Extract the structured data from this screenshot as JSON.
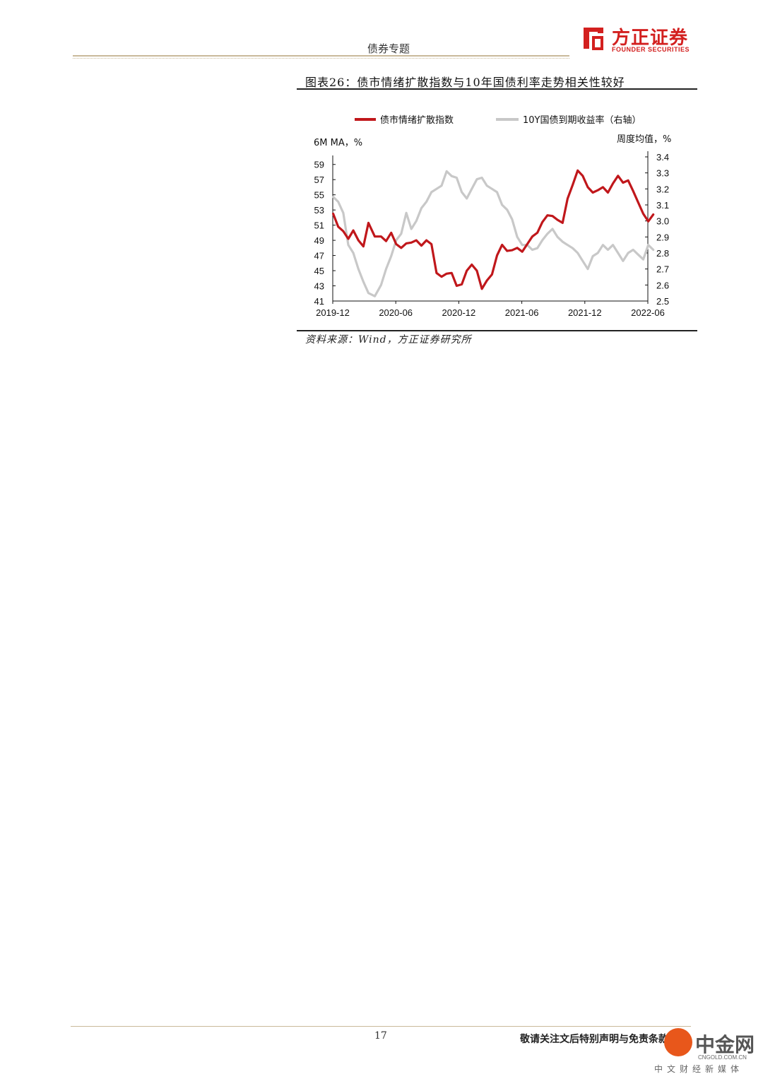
{
  "header": {
    "title": "债券专题"
  },
  "logo": {
    "cn": "方正证券",
    "en": "FOUNDER SECURITIES"
  },
  "figure": {
    "title": "图表26：债市情绪扩散指数与10年国债利率走势相关性较好",
    "source": "资料来源：Wind，方正证券研究所"
  },
  "chart_data": {
    "type": "line",
    "left_axis_label": "6M MA，%",
    "right_axis_label": "周度均值，%",
    "x_ticks": [
      "2019-12",
      "2020-06",
      "2020-12",
      "2021-06",
      "2021-12",
      "2022-06"
    ],
    "left_ticks": [
      "41",
      "43",
      "45",
      "47",
      "49",
      "51",
      "53",
      "55",
      "57",
      "59"
    ],
    "right_ticks": [
      "2.5",
      "2.6",
      "2.7",
      "2.8",
      "2.9",
      "3.0",
      "3.1",
      "3.2",
      "3.3",
      "3.4"
    ],
    "ylim_left": [
      41,
      60
    ],
    "ylim_right": [
      2.5,
      3.4
    ],
    "xlim": [
      "2019-12",
      "2022-06"
    ],
    "grid": false,
    "legend": "top",
    "series": [
      {
        "name": "债市情绪扩散指数",
        "axis": "left",
        "color": "#c0171b",
        "x": [
          2019.92,
          2019.96,
          2020.0,
          2020.04,
          2020.08,
          2020.12,
          2020.16,
          2020.2,
          2020.25,
          2020.3,
          2020.34,
          2020.38,
          2020.42,
          2020.46,
          2020.5,
          2020.54,
          2020.58,
          2020.62,
          2020.66,
          2020.7,
          2020.74,
          2020.78,
          2020.82,
          2020.86,
          2020.9,
          2020.94,
          2020.98,
          2021.02,
          2021.06,
          2021.1,
          2021.14,
          2021.18,
          2021.22,
          2021.26,
          2021.3,
          2021.34,
          2021.38,
          2021.42,
          2021.46,
          2021.5,
          2021.54,
          2021.58,
          2021.62,
          2021.66,
          2021.7,
          2021.74,
          2021.78,
          2021.82,
          2021.86,
          2021.9,
          2021.94,
          2021.98,
          2022.02,
          2022.06,
          2022.1,
          2022.14,
          2022.18,
          2022.22,
          2022.26,
          2022.3,
          2022.34,
          2022.38,
          2022.42,
          2022.46
        ],
        "values": [
          52.5,
          50.8,
          50.2,
          49.2,
          50.3,
          49.0,
          48.2,
          51.3,
          49.5,
          49.5,
          48.9,
          50.0,
          48.5,
          48.0,
          48.6,
          48.7,
          49.0,
          48.3,
          49.0,
          48.5,
          44.7,
          44.2,
          44.6,
          44.7,
          43.0,
          43.2,
          45.0,
          45.8,
          45.0,
          42.6,
          43.7,
          44.5,
          47.0,
          48.4,
          47.6,
          47.7,
          48.0,
          47.5,
          48.5,
          49.5,
          50.0,
          51.4,
          52.3,
          52.2,
          51.7,
          51.3,
          54.5,
          56.3,
          58.2,
          57.5,
          56.0,
          55.3,
          55.6,
          56.0,
          55.3,
          56.5,
          57.5,
          56.6,
          56.9,
          55.5,
          54.0,
          52.5,
          51.5,
          52.4
        ]
      },
      {
        "name": "10Y国债到期收益率（右轴）",
        "axis": "right",
        "color": "#c8c8c8",
        "x": [
          2019.92,
          2019.96,
          2020.0,
          2020.04,
          2020.08,
          2020.12,
          2020.16,
          2020.2,
          2020.25,
          2020.3,
          2020.34,
          2020.38,
          2020.42,
          2020.46,
          2020.5,
          2020.54,
          2020.58,
          2020.62,
          2020.66,
          2020.7,
          2020.74,
          2020.78,
          2020.82,
          2020.86,
          2020.9,
          2020.94,
          2020.98,
          2021.02,
          2021.06,
          2021.1,
          2021.14,
          2021.18,
          2021.22,
          2021.26,
          2021.3,
          2021.34,
          2021.38,
          2021.42,
          2021.46,
          2021.5,
          2021.54,
          2021.58,
          2021.62,
          2021.66,
          2021.7,
          2021.74,
          2021.78,
          2021.82,
          2021.86,
          2021.9,
          2021.94,
          2021.98,
          2022.02,
          2022.06,
          2022.1,
          2022.14,
          2022.18,
          2022.22,
          2022.26,
          2022.3,
          2022.34,
          2022.38,
          2022.42,
          2022.46
        ],
        "values": [
          3.15,
          3.12,
          3.05,
          2.85,
          2.8,
          2.7,
          2.62,
          2.55,
          2.53,
          2.6,
          2.7,
          2.78,
          2.88,
          2.92,
          3.05,
          2.95,
          3.0,
          3.08,
          3.12,
          3.18,
          3.2,
          3.22,
          3.31,
          3.28,
          3.27,
          3.18,
          3.14,
          3.2,
          3.26,
          3.27,
          3.22,
          3.2,
          3.18,
          3.1,
          3.07,
          3.01,
          2.9,
          2.85,
          2.85,
          2.82,
          2.83,
          2.88,
          2.92,
          2.95,
          2.9,
          2.87,
          2.85,
          2.83,
          2.8,
          2.75,
          2.7,
          2.78,
          2.8,
          2.85,
          2.82,
          2.85,
          2.8,
          2.75,
          2.8,
          2.82,
          2.79,
          2.76,
          2.85,
          2.82
        ]
      }
    ]
  },
  "footer": {
    "page": "17",
    "disclaimer": "敬请关注文后特别声明与免责条款",
    "watermark_cn": "中金网",
    "watermark_en": "CNGOLD.COM.CN",
    "watermark_sub": "中文财经新媒体"
  }
}
